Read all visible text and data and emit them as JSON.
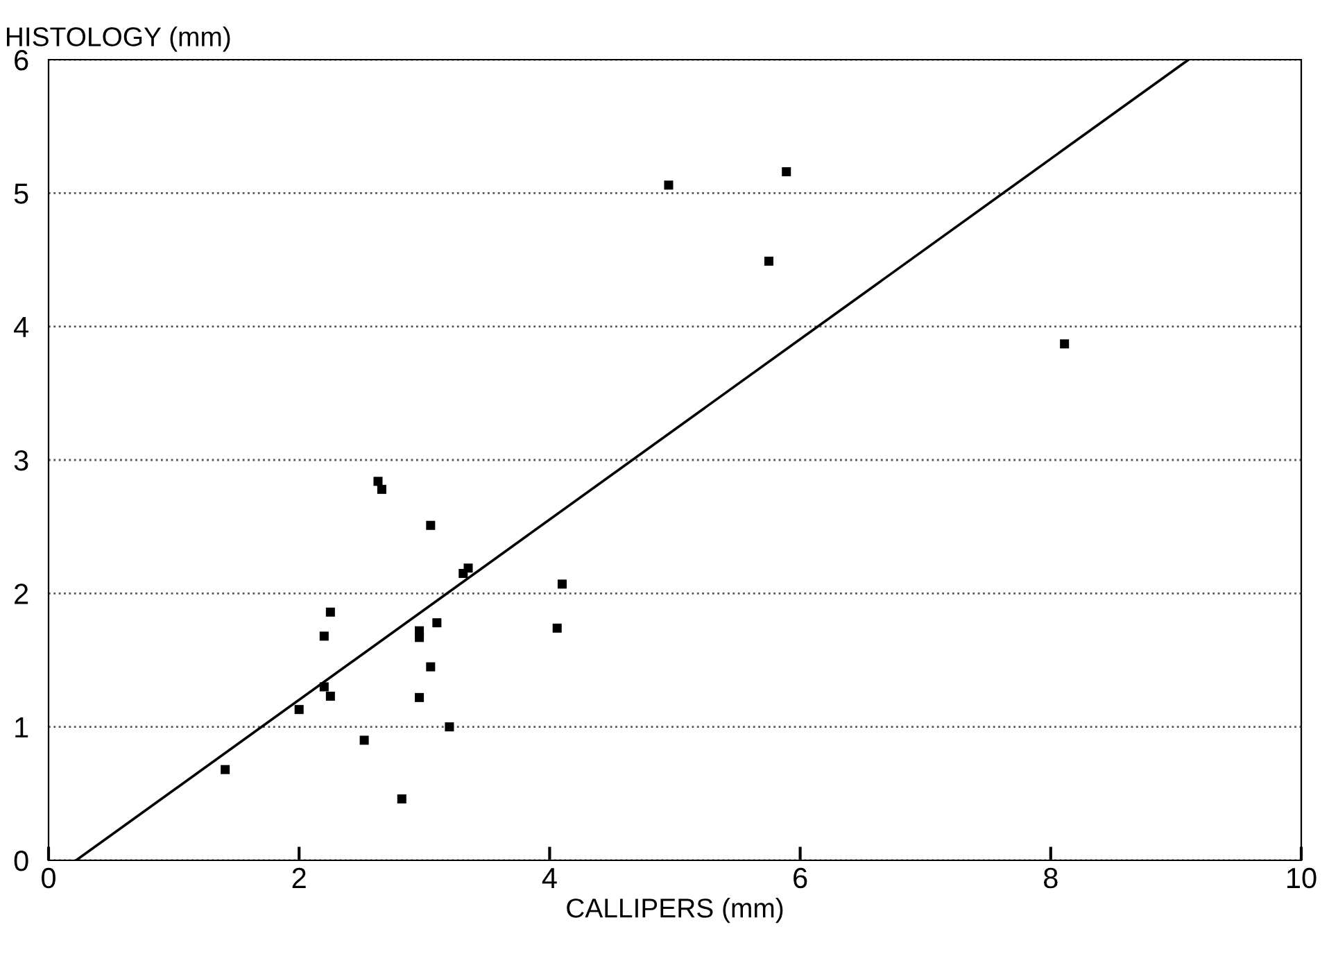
{
  "chart_data": {
    "type": "scatter",
    "xlabel": "CALLIPERS (mm)",
    "ylabel": "HISTOLOGY (mm)",
    "xlim": [
      0,
      10
    ],
    "ylim": [
      0,
      6
    ],
    "xticks": [
      0,
      2,
      4,
      6,
      8,
      10
    ],
    "yticks": [
      0,
      1,
      2,
      3,
      4,
      5,
      6
    ],
    "grid": "y",
    "series": [
      {
        "marker": "square",
        "color": "#000000",
        "x": [
          2.63,
          2.66,
          3.05,
          3.31,
          3.35,
          4.1,
          2.25,
          2.2,
          2.96,
          2.96,
          3.1,
          4.06,
          3.05,
          2.2,
          2.25,
          2.0,
          2.96,
          3.2,
          2.52,
          1.41,
          2.82,
          4.95,
          5.89,
          5.75,
          8.11
        ],
        "values": [
          2.84,
          2.78,
          2.51,
          2.15,
          2.19,
          2.07,
          1.86,
          1.68,
          1.72,
          1.67,
          1.78,
          1.74,
          1.45,
          1.3,
          1.23,
          1.13,
          1.22,
          1.0,
          0.9,
          0.68,
          0.46,
          5.06,
          5.16,
          4.49,
          3.87
        ]
      },
      {
        "type": "line",
        "color": "#000000",
        "x": [
          0.22,
          9.1
        ],
        "values": [
          0,
          6
        ]
      }
    ]
  }
}
